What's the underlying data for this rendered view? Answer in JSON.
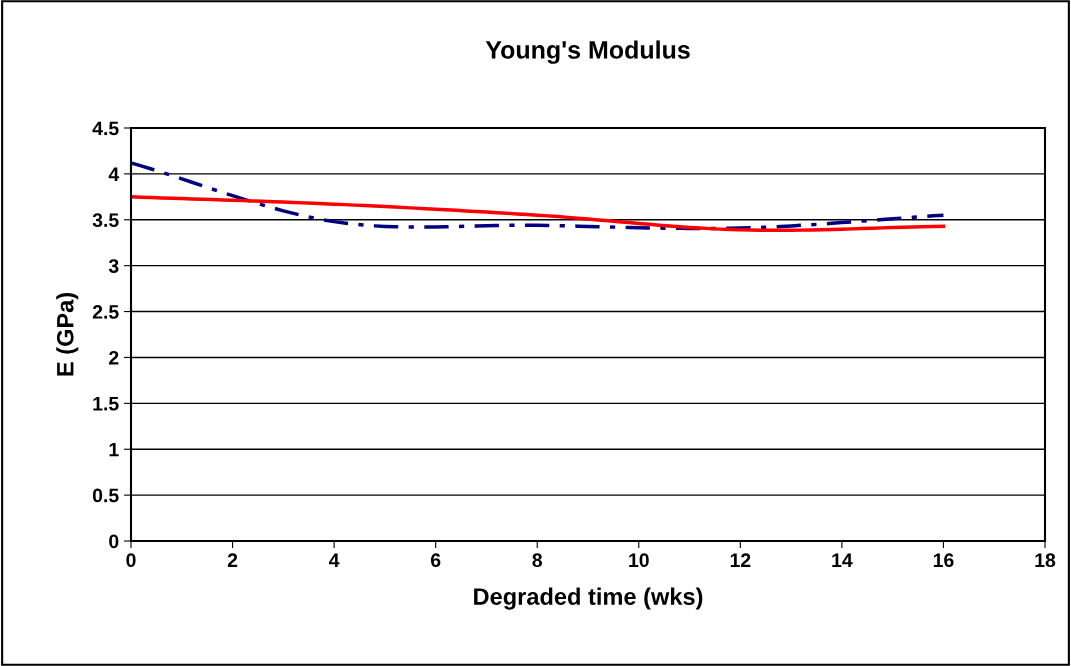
{
  "chart_data": {
    "type": "line",
    "title": "Young's Modulus",
    "xlabel": "Degraded time (wks)",
    "ylabel": "E (GPa)",
    "x": [
      0,
      4,
      8,
      12,
      16
    ],
    "series": [
      {
        "color": "#000080",
        "line_style": "dashdot",
        "values": [
          4.12,
          3.48,
          3.44,
          3.41,
          3.55
        ]
      },
      {
        "color": "#ff0000",
        "line_style": "solid",
        "values": [
          3.75,
          3.67,
          3.55,
          3.39,
          3.43
        ]
      }
    ],
    "xlim": [
      0,
      18
    ],
    "xticks": [
      0,
      2,
      4,
      6,
      8,
      10,
      12,
      14,
      16,
      18
    ],
    "ylim": [
      0,
      4.5
    ],
    "yticks": [
      0,
      0.5,
      1,
      1.5,
      2,
      2.5,
      3,
      3.5,
      4,
      4.5
    ],
    "grid": "y",
    "marker": "none",
    "legend": false
  }
}
